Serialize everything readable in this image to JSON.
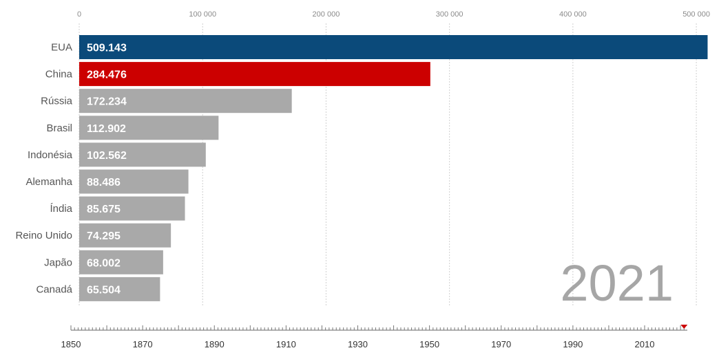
{
  "chart_data": {
    "type": "bar",
    "orientation": "horizontal",
    "year": "2021",
    "categories": [
      "EUA",
      "China",
      "Rússia",
      "Brasil",
      "Indonésia",
      "Alemanha",
      "Índia",
      "Reino Unido",
      "Japão",
      "Canadá"
    ],
    "values": [
      509143,
      284476,
      172234,
      112902,
      102562,
      88486,
      85675,
      74295,
      68002,
      65504
    ],
    "value_labels": [
      "509.143",
      "284.476",
      "172.234",
      "112.902",
      "102.562",
      "88.486",
      "85.675",
      "74.295",
      "68.002",
      "65.504"
    ],
    "colors": [
      "#0b4a7a",
      "#cc0000",
      "#a9a9a9",
      "#a9a9a9",
      "#a9a9a9",
      "#a9a9a9",
      "#a9a9a9",
      "#a9a9a9",
      "#a9a9a9",
      "#a9a9a9"
    ],
    "xlim": [
      0,
      510000
    ],
    "x_ticks": [
      0,
      100000,
      200000,
      300000,
      400000,
      500000
    ],
    "x_tick_labels": [
      "0",
      "100 000",
      "200 000",
      "300 000",
      "400 000",
      "500 000"
    ],
    "grid": true,
    "timeline": {
      "start": 1850,
      "end": 2021,
      "current": 2021,
      "labels": [
        "1850",
        "1870",
        "1890",
        "1910",
        "1930",
        "1950",
        "1970",
        "1990",
        "2010"
      ],
      "marker_color": "#cc0000"
    }
  }
}
